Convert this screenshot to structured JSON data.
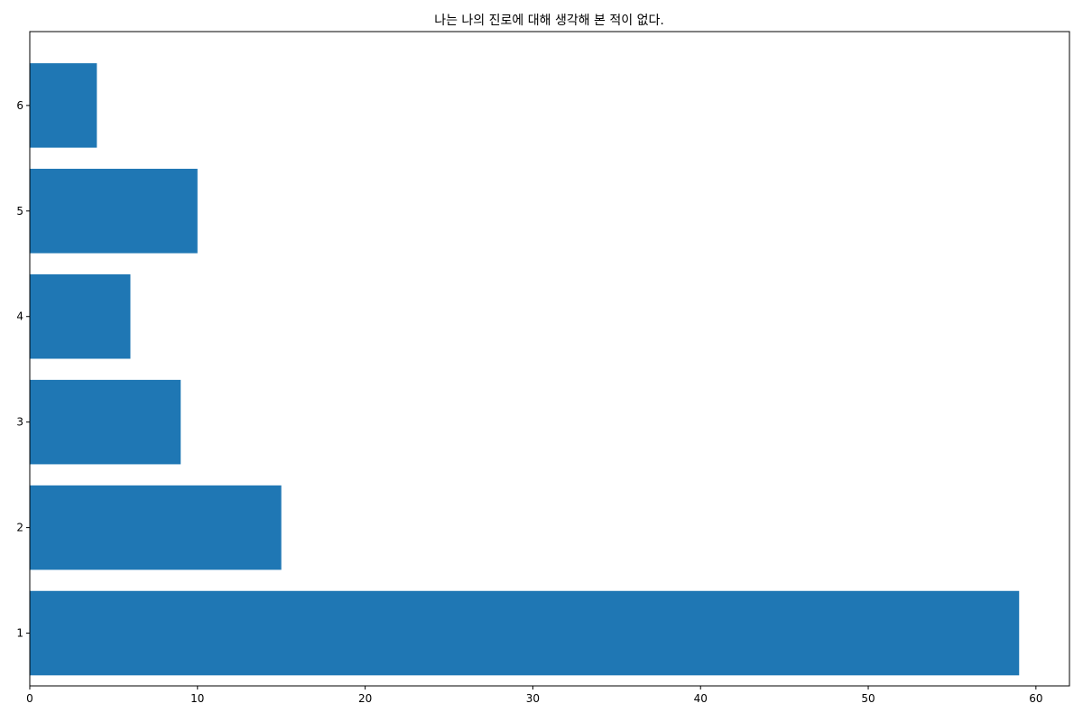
{
  "chart_data": {
    "type": "bar",
    "orientation": "horizontal",
    "title": "나는 나의 진로에 대해 생각해 본 적이 없다.",
    "xlabel": "",
    "ylabel": "",
    "categories": [
      "1",
      "2",
      "3",
      "4",
      "5",
      "6"
    ],
    "values": [
      59,
      15,
      9,
      6,
      10,
      4
    ],
    "xlim": [
      0,
      62
    ],
    "ylim": [
      0.5,
      6.7
    ],
    "xticks": [
      0,
      10,
      20,
      30,
      40,
      50,
      60
    ],
    "grid": false,
    "legend": "none",
    "colors": {
      "bar": "#1f77b4",
      "axis": "#000000",
      "background": "#ffffff"
    }
  }
}
